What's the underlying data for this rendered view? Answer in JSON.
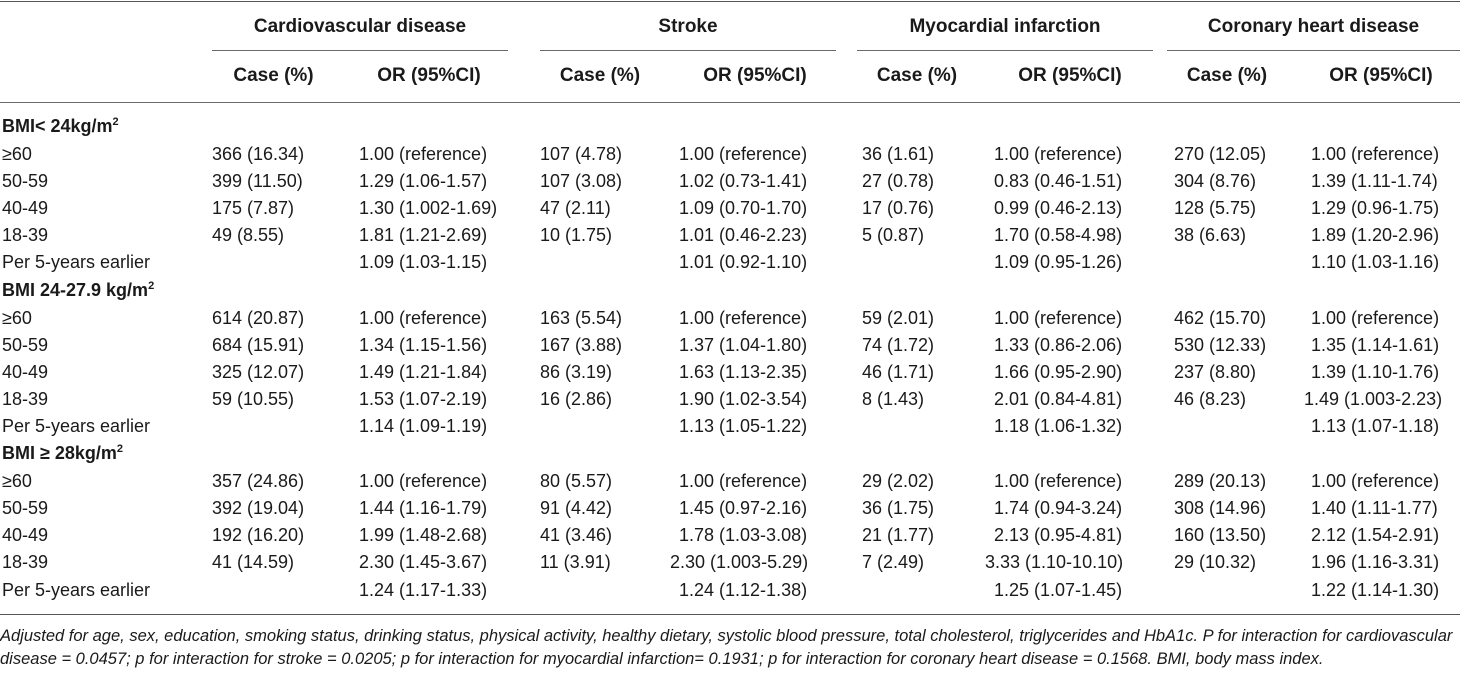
{
  "header": {
    "groups": [
      "Cardiovascular disease",
      "Stroke",
      "Myocardial infarction",
      "Coronary heart disease"
    ],
    "case_label": "Case (%)",
    "or_label": "OR (95%CI)"
  },
  "sections": [
    {
      "label": "BMI< 24kg/m",
      "sup": "2",
      "rows": [
        {
          "age": "≥60",
          "cvd_case": "366 (16.34)",
          "cvd_or": "1.00 (reference)",
          "str_case": "107 (4.78)",
          "str_or": "1.00 (reference)",
          "mi_case": "36 (1.61)",
          "mi_or": "1.00 (reference)",
          "chd_case": "270 (12.05)",
          "chd_or": "1.00 (reference)"
        },
        {
          "age": "50-59",
          "cvd_case": "399 (11.50)",
          "cvd_or": "1.29 (1.06-1.57)",
          "str_case": "107 (3.08)",
          "str_or": "1.02 (0.73-1.41)",
          "mi_case": "27 (0.78)",
          "mi_or": "0.83 (0.46-1.51)",
          "chd_case": "304 (8.76)",
          "chd_or": "1.39 (1.11-1.74)"
        },
        {
          "age": "40-49",
          "cvd_case": "175 (7.87)",
          "cvd_or": "1.30 (1.002-1.69)",
          "str_case": "47 (2.11)",
          "str_or": "1.09 (0.70-1.70)",
          "mi_case": "17 (0.76)",
          "mi_or": "0.99 (0.46-2.13)",
          "chd_case": "128 (5.75)",
          "chd_or": "1.29 (0.96-1.75)"
        },
        {
          "age": "18-39",
          "cvd_case": "49 (8.55)",
          "cvd_or": "1.81 (1.21-2.69)",
          "str_case": "10 (1.75)",
          "str_or": "1.01 (0.46-2.23)",
          "mi_case": "5 (0.87)",
          "mi_or": "1.70 (0.58-4.98)",
          "chd_case": "38 (6.63)",
          "chd_or": "1.89 (1.20-2.96)"
        },
        {
          "age": "Per 5-years earlier",
          "cvd_case": "",
          "cvd_or": "1.09 (1.03-1.15)",
          "str_case": "",
          "str_or": "1.01 (0.92-1.10)",
          "mi_case": "",
          "mi_or": "1.09 (0.95-1.26)",
          "chd_case": "",
          "chd_or": "1.10 (1.03-1.16)"
        }
      ]
    },
    {
      "label": "BMI 24-27.9 kg/m",
      "sup": "2",
      "rows": [
        {
          "age": "≥60",
          "cvd_case": "614 (20.87)",
          "cvd_or": "1.00 (reference)",
          "str_case": "163 (5.54)",
          "str_or": "1.00 (reference)",
          "mi_case": "59 (2.01)",
          "mi_or": "1.00 (reference)",
          "chd_case": "462 (15.70)",
          "chd_or": "1.00 (reference)"
        },
        {
          "age": "50-59",
          "cvd_case": "684 (15.91)",
          "cvd_or": "1.34 (1.15-1.56)",
          "str_case": "167 (3.88)",
          "str_or": "1.37 (1.04-1.80)",
          "mi_case": "74 (1.72)",
          "mi_or": "1.33 (0.86-2.06)",
          "chd_case": "530 (12.33)",
          "chd_or": "1.35 (1.14-1.61)"
        },
        {
          "age": "40-49",
          "cvd_case": "325 (12.07)",
          "cvd_or": "1.49 (1.21-1.84)",
          "str_case": "86 (3.19)",
          "str_or": "1.63 (1.13-2.35)",
          "mi_case": "46 (1.71)",
          "mi_or": "1.66 (0.95-2.90)",
          "chd_case": "237 (8.80)",
          "chd_or": "1.39 (1.10-1.76)"
        },
        {
          "age": "18-39",
          "cvd_case": "59 (10.55)",
          "cvd_or": "1.53 (1.07-2.19)",
          "str_case": "16 (2.86)",
          "str_or": "1.90 (1.02-3.54)",
          "mi_case": "8 (1.43)",
          "mi_or": "2.01 (0.84-4.81)",
          "chd_case": "46 (8.23)",
          "chd_or": "1.49 (1.003-2.23)"
        },
        {
          "age": "Per 5-years earlier",
          "cvd_case": "",
          "cvd_or": "1.14 (1.09-1.19)",
          "str_case": "",
          "str_or": "1.13 (1.05-1.22)",
          "mi_case": "",
          "mi_or": "1.18 (1.06-1.32)",
          "chd_case": "",
          "chd_or": "1.13 (1.07-1.18)"
        }
      ]
    },
    {
      "label": "BMI ≥ 28kg/m",
      "sup": "2",
      "rows": [
        {
          "age": "≥60",
          "cvd_case": "357 (24.86)",
          "cvd_or": "1.00 (reference)",
          "str_case": "80 (5.57)",
          "str_or": "1.00 (reference)",
          "mi_case": "29 (2.02)",
          "mi_or": "1.00 (reference)",
          "chd_case": "289 (20.13)",
          "chd_or": "1.00 (reference)"
        },
        {
          "age": "50-59",
          "cvd_case": "392 (19.04)",
          "cvd_or": "1.44 (1.16-1.79)",
          "str_case": "91 (4.42)",
          "str_or": "1.45 (0.97-2.16)",
          "mi_case": "36 (1.75)",
          "mi_or": "1.74 (0.94-3.24)",
          "chd_case": "308 (14.96)",
          "chd_or": "1.40 (1.11-1.77)"
        },
        {
          "age": "40-49",
          "cvd_case": "192 (16.20)",
          "cvd_or": "1.99 (1.48-2.68)",
          "str_case": "41 (3.46)",
          "str_or": "1.78 (1.03-3.08)",
          "mi_case": "21 (1.77)",
          "mi_or": "2.13 (0.95-4.81)",
          "chd_case": "160 (13.50)",
          "chd_or": "2.12 (1.54-2.91)"
        },
        {
          "age": "18-39",
          "cvd_case": "41 (14.59)",
          "cvd_or": "2.30 (1.45-3.67)",
          "str_case": "11 (3.91)",
          "str_or": "2.30 (1.003-5.29)",
          "mi_case": "7 (2.49)",
          "mi_or": "3.33 (1.10-10.10)",
          "chd_case": "29 (10.32)",
          "chd_or": "1.96 (1.16-3.31)"
        },
        {
          "age": "Per 5-years earlier",
          "cvd_case": "",
          "cvd_or": "1.24 (1.17-1.33)",
          "str_case": "",
          "str_or": "1.24 (1.12-1.38)",
          "mi_case": "",
          "mi_or": "1.25 (1.07-1.45)",
          "chd_case": "",
          "chd_or": "1.22 (1.14-1.30)"
        }
      ]
    }
  ],
  "footnote": "Adjusted for age, sex, education, smoking status, drinking status, physical activity, healthy dietary, systolic blood pressure, total cholesterol, triglycerides and HbA1c. P for interaction for cardiovascular disease = 0.0457; p for interaction for stroke = 0.0205; p for interaction for myocardial infarction= 0.1931; p for interaction for coronary heart disease = 0.1568. BMI, body mass index."
}
